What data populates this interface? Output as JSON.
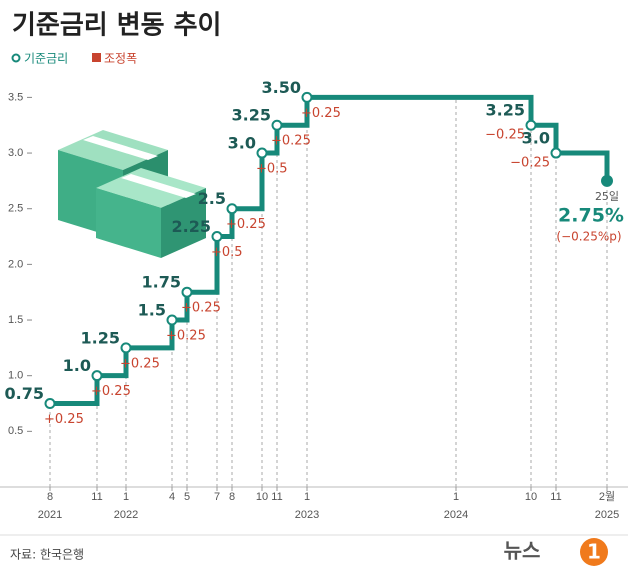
{
  "chart_data": {
    "type": "step",
    "title": "기준금리 변동 추이",
    "legend": [
      {
        "name": "기준금리",
        "color": "#17897a"
      },
      {
        "name": "조정폭",
        "color": "#c8442f"
      }
    ],
    "x": [
      "2021-08",
      "2021-11",
      "2022-01",
      "2022-04",
      "2022-05",
      "2022-07",
      "2022-08",
      "2022-10",
      "2022-11",
      "2023-01",
      "2024-10",
      "2024-11",
      "2025-02"
    ],
    "values": [
      0.75,
      1,
      1.25,
      1.5,
      1.75,
      2.25,
      2.5,
      3,
      3.25,
      3.5,
      3.25,
      3,
      2.75
    ],
    "value_labels": [
      "0.75",
      "1.0",
      "1.25",
      "1.5",
      "1.75",
      "2.25",
      "2.5",
      "3.0",
      "3.25",
      "3.50",
      "3.25",
      "3.0",
      "2.75%"
    ],
    "change_labels": [
      "+0.25",
      "+0.25",
      "+0.25",
      "+0.25",
      "+0.25",
      "+0.5",
      "+0.25",
      "+0.5",
      "+0.25",
      "+0.25",
      "−0.25",
      "−0.25",
      "(−0.25%p)"
    ],
    "last_point_note": "25일",
    "color": "#17897a",
    "change_color": "#c8442f",
    "ylim": [
      0,
      3.8
    ],
    "yticks": [
      0.5,
      {
        "value": 1,
        "label": "1.0"
      },
      1.5,
      {
        "value": 2,
        "label": "2.0"
      },
      2.5,
      {
        "value": 3,
        "label": "3.0"
      },
      3.5
    ],
    "xticks": [
      {
        "value": "2021-08",
        "label": "8"
      },
      {
        "value": "2021-11",
        "label": "11"
      },
      {
        "value": "2022-01",
        "label": "1"
      },
      {
        "value": "2022-04",
        "label": "4"
      },
      {
        "value": "2022-05",
        "label": "5"
      },
      {
        "value": "2022-07",
        "label": "7"
      },
      {
        "value": "2022-08",
        "label": "8"
      },
      {
        "value": "2022-10",
        "label": "10"
      },
      {
        "value": "2022-11",
        "label": "11"
      },
      {
        "value": "2023-01",
        "label": "1"
      },
      {
        "value": "2024-01",
        "label": "1"
      },
      {
        "value": "2024-10",
        "label": "10"
      },
      {
        "value": "2024-11",
        "label": "11"
      },
      {
        "value": "2025-02",
        "label": "2월"
      }
    ],
    "xyears": [
      {
        "value": "2021-08",
        "label": "2021"
      },
      {
        "value": "2022-01",
        "label": "2022"
      },
      {
        "value": "2023-01",
        "label": "2023"
      },
      {
        "value": "2024-01",
        "label": "2024"
      },
      {
        "value": "2025-02",
        "label": "2025"
      }
    ],
    "source": "자료: 한국은행",
    "logo": {
      "text": "뉴스",
      "badge": "1"
    }
  }
}
